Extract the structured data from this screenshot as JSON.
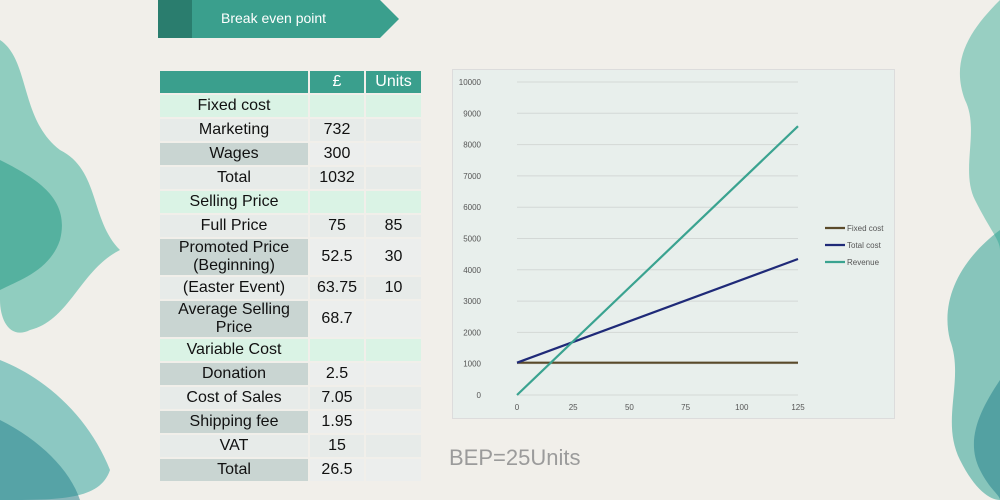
{
  "banner": {
    "title": "Break even point"
  },
  "table": {
    "header": [
      "",
      "£",
      "Units"
    ],
    "rows": [
      {
        "type": "section",
        "cells": [
          "Fixed cost",
          "",
          ""
        ]
      },
      {
        "type": "row",
        "cells": [
          "Marketing",
          "732",
          ""
        ]
      },
      {
        "type": "row",
        "cells": [
          "Wages",
          "300",
          ""
        ]
      },
      {
        "type": "row",
        "cells": [
          "Total",
          "1032",
          ""
        ]
      },
      {
        "type": "section",
        "cells": [
          "Selling Price",
          "",
          ""
        ]
      },
      {
        "type": "row",
        "cells": [
          "Full Price",
          "75",
          "85"
        ]
      },
      {
        "type": "row-tall",
        "cells": [
          "Promoted Price (Beginning)",
          "52.5",
          "30"
        ]
      },
      {
        "type": "row",
        "cells": [
          "(Easter Event)",
          "63.75",
          "10"
        ]
      },
      {
        "type": "row-tall",
        "cells": [
          "Average Selling Price",
          "68.7",
          ""
        ]
      },
      {
        "type": "section",
        "cells": [
          "Variable Cost",
          "",
          ""
        ]
      },
      {
        "type": "row",
        "cells": [
          "Donation",
          "2.5",
          ""
        ]
      },
      {
        "type": "row",
        "cells": [
          "Cost of Sales",
          "7.05",
          ""
        ]
      },
      {
        "type": "row",
        "cells": [
          "Shipping fee",
          "1.95",
          ""
        ]
      },
      {
        "type": "row",
        "cells": [
          "VAT",
          "15",
          ""
        ]
      },
      {
        "type": "row",
        "cells": [
          "Total",
          "26.5",
          ""
        ]
      }
    ]
  },
  "bep_text": "BEP=25Units",
  "colors": {
    "fixed_cost": "#5a4a2a",
    "total_cost": "#1f2a78",
    "revenue": "#3aa390",
    "accent": "#3a9f8d"
  },
  "chart_data": {
    "type": "line",
    "x": [
      0,
      25,
      50,
      75,
      100,
      125
    ],
    "x_ticks": [
      "0",
      "25",
      "50",
      "75",
      "100",
      "125"
    ],
    "y_ticks": [
      "0",
      "1000",
      "2000",
      "3000",
      "4000",
      "5000",
      "6000",
      "7000",
      "8000",
      "9000",
      "10000"
    ],
    "ylim": [
      0,
      10000
    ],
    "xlim": [
      0,
      125
    ],
    "grid": true,
    "legend_position": "right",
    "series": [
      {
        "name": "Fixed cost",
        "points": [
          [
            0,
            1032
          ],
          [
            125,
            1032
          ]
        ]
      },
      {
        "name": "Total cost",
        "points": [
          [
            0,
            1032
          ],
          [
            125,
            4345
          ]
        ]
      },
      {
        "name": "Revenue",
        "points": [
          [
            0,
            0
          ],
          [
            125,
            8588
          ]
        ]
      }
    ]
  }
}
